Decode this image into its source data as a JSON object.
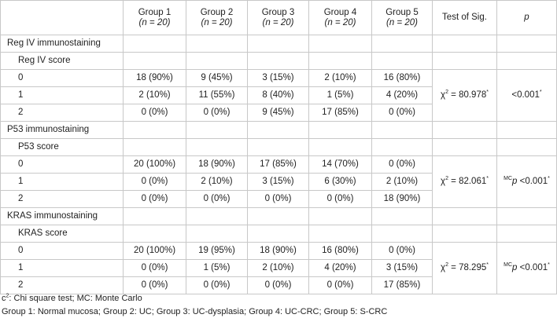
{
  "header": {
    "groups": [
      {
        "label": "Group 1",
        "n": "(n = 20)"
      },
      {
        "label": "Group 2",
        "n": "(n = 20)"
      },
      {
        "label": "Group 3",
        "n": "(n = 20)"
      },
      {
        "label": "Group 4",
        "n": "(n = 20)"
      },
      {
        "label": "Group 5",
        "n": "(n = 20)"
      }
    ],
    "test": "Test of Sig.",
    "p": "p"
  },
  "sections": [
    {
      "title": "Reg IV immunostaining",
      "score_label": "Reg IV score",
      "rows": [
        {
          "score": "0",
          "values": [
            "18 (90%)",
            "9 (45%)",
            "3 (15%)",
            "2 (10%)",
            "16 (80%)"
          ]
        },
        {
          "score": "1",
          "values": [
            "2 (10%)",
            "11 (55%)",
            "8 (40%)",
            "1 (5%)",
            "4 (20%)"
          ]
        },
        {
          "score": "2",
          "values": [
            "0 (0%)",
            "0 (0%)",
            "9 (45%)",
            "17 (85%)",
            "0 (0%)"
          ]
        }
      ],
      "test": "χ",
      "test_sup": "2",
      "test_value": " = 80.978",
      "test_mark": "*",
      "p_prefix": "",
      "p_prefix_p": "",
      "p_value": "<0.001",
      "p_mark": "*"
    },
    {
      "title": "P53 immunostaining",
      "score_label": "P53 score",
      "rows": [
        {
          "score": "0",
          "values": [
            "20 (100%)",
            "18 (90%)",
            "17 (85%)",
            "14 (70%)",
            "0 (0%)"
          ]
        },
        {
          "score": "1",
          "values": [
            "0 (0%)",
            "2 (10%)",
            "3 (15%)",
            "6 (30%)",
            "2 (10%)"
          ]
        },
        {
          "score": "2",
          "values": [
            "0 (0%)",
            "0 (0%)",
            "0 (0%)",
            "0 (0%)",
            "18 (90%)"
          ]
        }
      ],
      "test": "χ",
      "test_sup": "2",
      "test_value": " = 82.061",
      "test_mark": "*",
      "p_prefix": "MC",
      "p_prefix_p": "p",
      "p_value": " <0.001",
      "p_mark": "*"
    },
    {
      "title": "KRAS immunostaining",
      "score_label": "KRAS score",
      "rows": [
        {
          "score": "0",
          "values": [
            "20 (100%)",
            "19 (95%)",
            "18 (90%)",
            "16 (80%)",
            "0 (0%)"
          ]
        },
        {
          "score": "1",
          "values": [
            "0 (0%)",
            "1 (5%)",
            "2 (10%)",
            "4 (20%)",
            "3 (15%)"
          ]
        },
        {
          "score": "2",
          "values": [
            "0 (0%)",
            "0 (0%)",
            "0 (0%)",
            "0 (0%)",
            "17 (85%)"
          ]
        }
      ],
      "test": "χ",
      "test_sup": "2",
      "test_value": " = 78.295",
      "test_mark": "*",
      "p_prefix": "MC",
      "p_prefix_p": "p",
      "p_value": " <0.001",
      "p_mark": "*"
    }
  ],
  "footnotes": {
    "line1_c": "c",
    "line1_sup": "2",
    "line1_rest": ": Chi square test; MC: Monte Carlo",
    "line2": "Group 1: Normal mucosa; Group 2: UC; Group 3: UC-dysplasia; Group 4: UC-CRC; Group 5: S-CRC"
  }
}
